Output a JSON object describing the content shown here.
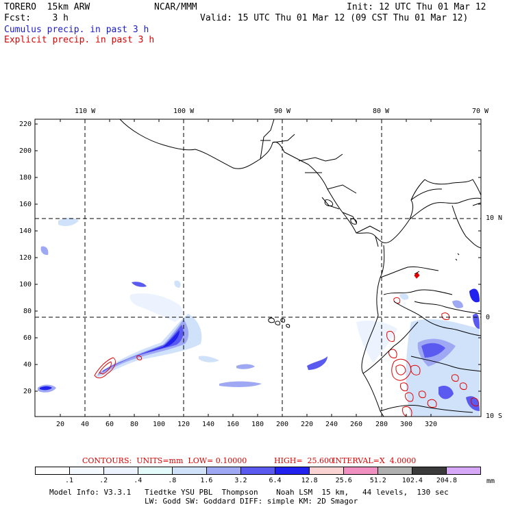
{
  "header": {
    "model": "TORERO  15km ARW",
    "org": "NCAR/MMM",
    "init": "Init: 12 UTC Thu 01 Mar 12",
    "fcst": "Fcst:    3 h",
    "valid": "Valid: 15 UTC Thu 01 Mar 12 (09 CST Thu 01 Mar 12)",
    "field1": "Cumulus precip. in past 3 h",
    "field2": "Explicit precip. in past 3 h"
  },
  "colors": {
    "field1": "#1a1acc",
    "field2": "#dd0000",
    "contour": "#dd0000",
    "grid": "#000000"
  },
  "map": {
    "longitude_labels": [
      "110 W",
      "100 W",
      "90 W",
      "80 W",
      "70 W"
    ],
    "latitude_labels": [
      "10 N",
      "0",
      "10 S"
    ],
    "y_ticks": [
      "220",
      "200",
      "180",
      "160",
      "140",
      "120",
      "100",
      "80",
      "60",
      "40",
      "20"
    ],
    "x_ticks": [
      "20",
      "40",
      "60",
      "80",
      "100",
      "120",
      "140",
      "160",
      "180",
      "200",
      "220",
      "240",
      "260",
      "280",
      "300",
      "320"
    ]
  },
  "contour_info": {
    "units": "CONTOURS:  UNITS=mm  LOW= 0.10000",
    "high": "HIGH=  25.600",
    "interval": "INTERVAL=X  4.0000"
  },
  "colorbar": {
    "levels": [
      ".1",
      ".2",
      ".4",
      ".8",
      "1.6",
      "3.2",
      "6.4",
      "12.8",
      "25.6",
      "51.2",
      "102.4",
      "204.8"
    ],
    "unit": "mm",
    "colors": [
      "#ffffff",
      "#f4f8ff",
      "#ecf3ff",
      "#e4fbfb",
      "#d0e2fa",
      "#9fa8f2",
      "#5a5af0",
      "#2222ee",
      "#fbd2d2",
      "#f090c0",
      "#b0b0b0",
      "#3a3a3a",
      "#d8a8f8"
    ]
  },
  "footer": {
    "line1": "Model Info: V3.3.1   Tiedtke YSU PBL  Thompson    Noah LSM  15 km,   44 levels,  130 sec",
    "line2": "LW: Godd SW: Goddard DIFF: simple KM: 2D Smagor"
  }
}
